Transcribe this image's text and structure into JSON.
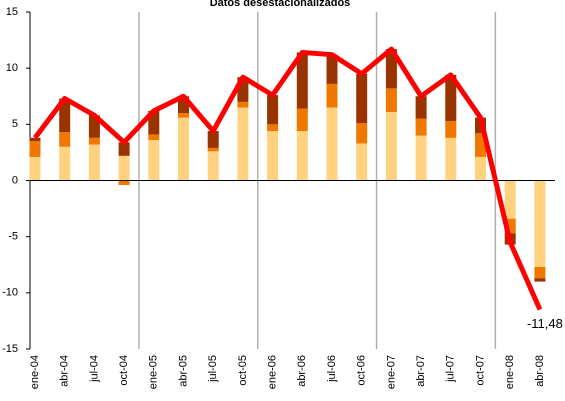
{
  "chart_data": {
    "type": "bar",
    "stacked": true,
    "title": "Datos desestacionalizados",
    "categories": [
      "ene-04",
      "abr-04",
      "jul-04",
      "oct-04",
      "ene-05",
      "abr-05",
      "jul-05",
      "oct-05",
      "ene-06",
      "abr-06",
      "jul-06",
      "oct-06",
      "ene-07",
      "abr-07",
      "jul-07",
      "oct-07",
      "ene-08",
      "abr-08"
    ],
    "series": [
      {
        "color": "#FFD280",
        "values": [
          2.1,
          3.0,
          3.2,
          2.2,
          3.6,
          5.6,
          2.6,
          6.5,
          4.4,
          4.4,
          6.5,
          3.3,
          6.1,
          4.0,
          3.8,
          2.1,
          -3.4,
          -7.7
        ]
      },
      {
        "color": "#F07800",
        "values": [
          1.4,
          1.3,
          0.6,
          -0.4,
          0.5,
          0.4,
          0.3,
          0.5,
          0.6,
          2.0,
          2.1,
          1.8,
          2.1,
          1.5,
          1.5,
          2.1,
          -1.3,
          -1.0
        ]
      },
      {
        "color": "#993300",
        "values": [
          0.3,
          3.0,
          2.0,
          1.2,
          2.1,
          1.5,
          1.5,
          2.2,
          2.6,
          5.0,
          2.6,
          4.4,
          3.5,
          2.0,
          4.1,
          1.4,
          -1.0,
          -0.3
        ]
      }
    ],
    "line": {
      "color": "#FF0000",
      "values": [
        3.8,
        7.3,
        5.8,
        3.4,
        6.2,
        7.5,
        4.4,
        9.2,
        7.6,
        11.4,
        11.2,
        9.5,
        11.7,
        7.5,
        9.4,
        5.6,
        -5.5,
        -11.48
      ],
      "value_labels": [
        null,
        null,
        null,
        null,
        null,
        null,
        null,
        null,
        null,
        null,
        null,
        null,
        null,
        null,
        null,
        null,
        null,
        "-11,48"
      ]
    },
    "ylim": [
      -15,
      15
    ],
    "yticks": [
      -15,
      -10,
      -5,
      0,
      5,
      10,
      15
    ],
    "year_separators": true
  }
}
